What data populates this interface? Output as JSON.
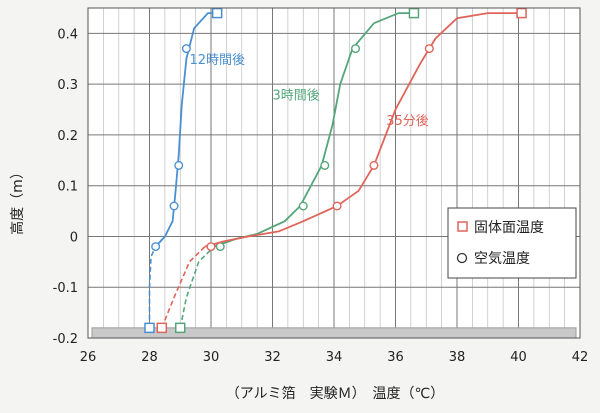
{
  "chart_data": {
    "type": "line",
    "xlabel": "（アルミ箔　実験Ｍ）　温度（℃）",
    "ylabel": "高度（m）",
    "xlim": [
      26,
      42
    ],
    "ylim": [
      -0.2,
      0.45
    ],
    "x_ticks": [
      "26",
      "28",
      "30",
      "32",
      "34",
      "36",
      "38",
      "40",
      "42"
    ],
    "y_ticks": [
      "-0.2",
      "-0.1",
      "0",
      "0.1",
      "0.2",
      "0.3",
      "0.4"
    ],
    "grid": true,
    "legend_position": "right",
    "legend": [
      {
        "label": "固体面温度",
        "marker": "square"
      },
      {
        "label": "空気温度",
        "marker": "circle"
      }
    ],
    "ground_band": {
      "y_from": -0.2,
      "y_to": -0.18
    },
    "series": [
      {
        "name": "12時間後",
        "color": "#4a8fd0",
        "curve": [
          [
            28.0,
            -0.18
          ],
          [
            28.0,
            -0.1
          ],
          [
            28.05,
            -0.04
          ],
          [
            28.2,
            -0.02
          ],
          [
            28.5,
            0.0
          ],
          [
            28.75,
            0.03
          ],
          [
            28.85,
            0.09
          ],
          [
            28.95,
            0.16
          ],
          [
            29.05,
            0.26
          ],
          [
            29.2,
            0.35
          ],
          [
            29.45,
            0.41
          ],
          [
            29.9,
            0.44
          ],
          [
            30.2,
            0.44
          ]
        ],
        "dashed_below": 0,
        "air_points": [
          [
            28.2,
            -0.02
          ],
          [
            28.8,
            0.06
          ],
          [
            28.95,
            0.14
          ],
          [
            29.2,
            0.37
          ]
        ],
        "surface_points": [
          [
            28.0,
            -0.18
          ],
          [
            30.2,
            0.44
          ]
        ],
        "label": "12時間後",
        "label_at": [
          29.3,
          0.34
        ]
      },
      {
        "name": "3時間後",
        "color": "#54a67a",
        "curve": [
          [
            29.0,
            -0.18
          ],
          [
            29.2,
            -0.12
          ],
          [
            29.6,
            -0.05
          ],
          [
            30.1,
            -0.02
          ],
          [
            30.8,
            -0.005
          ],
          [
            31.5,
            0.005
          ],
          [
            32.4,
            0.03
          ],
          [
            32.9,
            0.06
          ],
          [
            33.6,
            0.14
          ],
          [
            33.95,
            0.22
          ],
          [
            34.2,
            0.3
          ],
          [
            34.6,
            0.37
          ],
          [
            35.3,
            0.42
          ],
          [
            36.1,
            0.44
          ],
          [
            36.6,
            0.44
          ]
        ],
        "dashed_below": 0,
        "air_points": [
          [
            30.3,
            -0.02
          ],
          [
            33.0,
            0.06
          ],
          [
            33.7,
            0.14
          ],
          [
            34.7,
            0.37
          ]
        ],
        "surface_points": [
          [
            29.0,
            -0.18
          ],
          [
            36.6,
            0.44
          ]
        ],
        "label": "3時間後",
        "label_at": [
          32.0,
          0.27
        ]
      },
      {
        "name": "35分後",
        "color": "#e0645a",
        "curve": [
          [
            28.4,
            -0.18
          ],
          [
            28.8,
            -0.12
          ],
          [
            29.3,
            -0.05
          ],
          [
            29.8,
            -0.02
          ],
          [
            30.4,
            -0.01
          ],
          [
            31.2,
            0.0
          ],
          [
            32.2,
            0.01
          ],
          [
            33.0,
            0.03
          ],
          [
            34.1,
            0.06
          ],
          [
            34.8,
            0.09
          ],
          [
            35.3,
            0.14
          ],
          [
            36.0,
            0.25
          ],
          [
            36.8,
            0.34
          ],
          [
            37.3,
            0.39
          ],
          [
            38.0,
            0.43
          ],
          [
            39.0,
            0.44
          ],
          [
            40.1,
            0.44
          ]
        ],
        "dashed_below": 0,
        "air_points": [
          [
            30.0,
            -0.02
          ],
          [
            34.1,
            0.06
          ],
          [
            35.3,
            0.14
          ],
          [
            37.1,
            0.37
          ]
        ],
        "surface_points": [
          [
            28.4,
            -0.18
          ],
          [
            40.1,
            0.44
          ]
        ],
        "label": "35分後",
        "label_at": [
          35.7,
          0.22
        ]
      }
    ]
  }
}
